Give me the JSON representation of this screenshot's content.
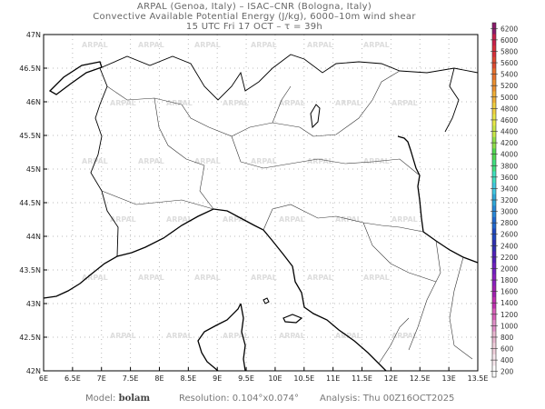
{
  "header": {
    "line1": "ARPAL (Genoa, Italy)  –  ISAC–CNR (Bologna, Italy)",
    "line2": "Convective Available Potential Energy (J/kg), 6000–10m wind shear",
    "line3": "15 UTC Fri 17 OCT  –  τ = 39h"
  },
  "map": {
    "lat_ticks": [
      "47N",
      "46.5N",
      "46N",
      "45.5N",
      "45N",
      "44.5N",
      "44N",
      "43.5N",
      "43N",
      "42.5N",
      "42N"
    ],
    "lon_ticks": [
      "6E",
      "6.5E",
      "7E",
      "7.5E",
      "8E",
      "8.5E",
      "9E",
      "9.5E",
      "10E",
      "10.5E",
      "11E",
      "11.5E",
      "12E",
      "12.5E",
      "13E",
      "13.5E"
    ],
    "watermark": "ARPAL",
    "extent": {
      "lon": [
        6,
        13.5
      ],
      "lat": [
        42,
        47
      ]
    }
  },
  "colorbar": {
    "labels": [
      "6200",
      "6000",
      "5800",
      "5600",
      "5400",
      "5200",
      "5000",
      "4800",
      "4600",
      "4400",
      "4200",
      "4000",
      "3800",
      "3600",
      "3400",
      "3200",
      "3000",
      "2800",
      "2600",
      "2400",
      "2200",
      "2000",
      "1800",
      "1600",
      "1400",
      "1200",
      "1000",
      "800",
      "600",
      "400",
      "200"
    ],
    "colors": [
      "#8a1a6a",
      "#c8204a",
      "#d8303a",
      "#e04a30",
      "#e8702c",
      "#ec9030",
      "#f0b038",
      "#f0d040",
      "#e8e848",
      "#c8e848",
      "#90e048",
      "#50d850",
      "#40e080",
      "#40e0c0",
      "#40c8e0",
      "#30a8d8",
      "#2888d8",
      "#2068d0",
      "#2048c0",
      "#3030b0",
      "#5020b8",
      "#7020c0",
      "#8a20c0",
      "#a020b0",
      "#c030b0",
      "#d860b8",
      "#e090c8",
      "#e8b8d0",
      "#f0d0dc",
      "#f8e8ee",
      "#ffffff"
    ]
  },
  "footer": {
    "model_label": "Model:",
    "model_value": "bolam",
    "resolution": "Resolution: 0.104°x0.074°",
    "analysis": "Analysis: Thu 00Z16OCT2025"
  }
}
